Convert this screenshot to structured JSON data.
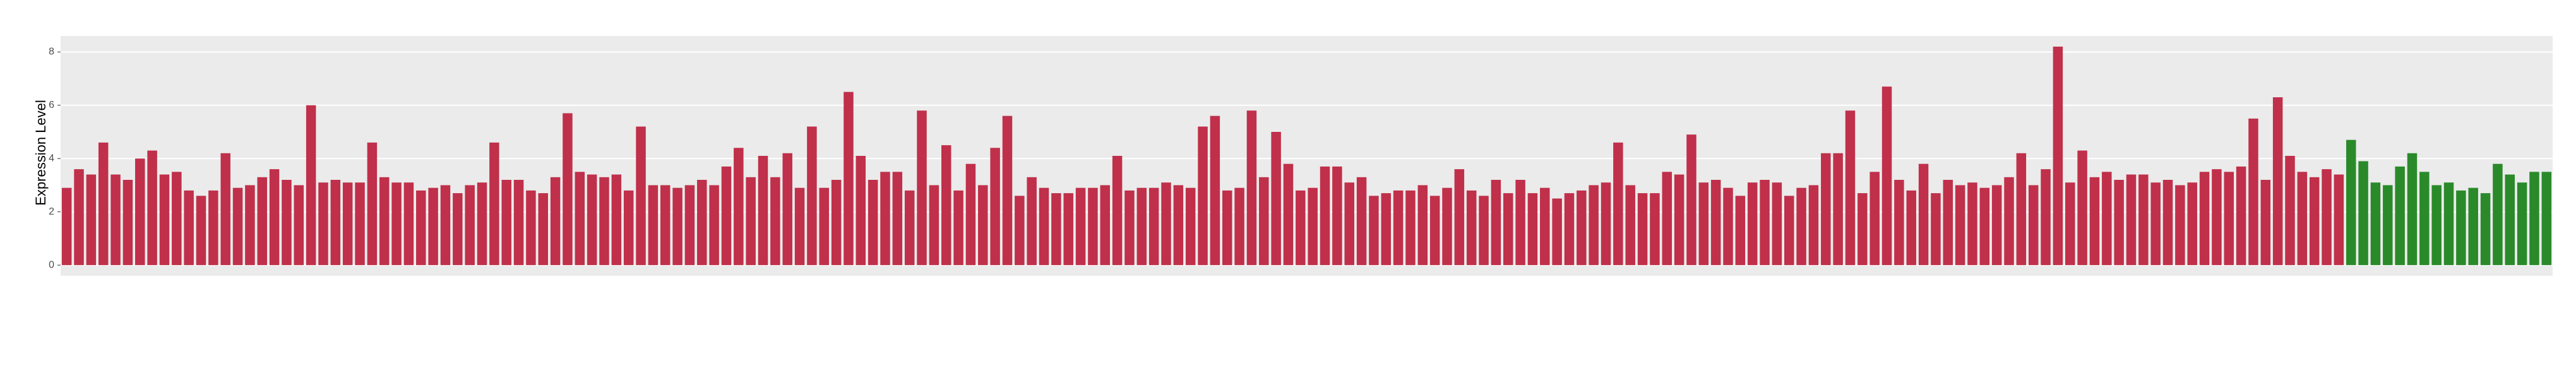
{
  "chart_data": {
    "type": "bar",
    "y_label": "Expression Level",
    "values": [
      2.9,
      3.6,
      3.4,
      4.6,
      3.4,
      3.2,
      4.0,
      4.3,
      3.4,
      3.5,
      2.8,
      2.6,
      2.8,
      4.2,
      2.9,
      3.0,
      3.3,
      3.6,
      3.2,
      3.0,
      6.0,
      3.1,
      3.2,
      3.1,
      3.1,
      4.6,
      3.3,
      3.1,
      3.1,
      2.8,
      2.9,
      3.0,
      2.7,
      3.0,
      3.1,
      4.6,
      3.2,
      3.2,
      2.8,
      2.7,
      3.3,
      5.7,
      3.5,
      3.4,
      3.3,
      3.4,
      2.8,
      5.2,
      3.0,
      3.0,
      2.9,
      3.0,
      3.2,
      3.0,
      3.7,
      4.4,
      3.3,
      4.1,
      3.3,
      4.2,
      2.9,
      5.2,
      2.9,
      3.2,
      6.5,
      4.1,
      3.2,
      3.5,
      3.5,
      2.8,
      5.8,
      3.0,
      4.5,
      2.8,
      3.8,
      3.0,
      4.4,
      5.6,
      2.6,
      3.3,
      2.9,
      2.7,
      2.7,
      2.9,
      2.9,
      3.0,
      4.1,
      2.8,
      2.9,
      2.9,
      3.1,
      3.0,
      2.9,
      5.2,
      5.6,
      2.8,
      2.9,
      5.8,
      3.3,
      5.0,
      3.8,
      2.8,
      2.9,
      3.7,
      3.7,
      3.1,
      3.3,
      2.6,
      2.7,
      2.8,
      2.8,
      3.0,
      2.6,
      2.9,
      3.6,
      2.8,
      2.6,
      3.2,
      2.7,
      3.2,
      2.7,
      2.9,
      2.5,
      2.7,
      2.8,
      3.0,
      3.1,
      4.6,
      3.0,
      2.7,
      2.7,
      3.5,
      3.4,
      4.9,
      3.1,
      3.2,
      2.9,
      2.6,
      3.1,
      3.2,
      3.1,
      2.6,
      2.9,
      3.0,
      4.2,
      4.2,
      5.8,
      2.7,
      3.5,
      6.7,
      3.2,
      2.8,
      3.8,
      2.7,
      3.2,
      3.0,
      3.1,
      2.9,
      3.0,
      3.3,
      4.2,
      3.0,
      3.6,
      8.2,
      3.1,
      4.3,
      3.3,
      3.5,
      3.2,
      3.4,
      3.4,
      3.1,
      3.2,
      3.0,
      3.1,
      3.5,
      3.6,
      3.5,
      3.7,
      5.5,
      3.2,
      6.3,
      4.1,
      3.5,
      3.3,
      3.6,
      3.4,
      4.7,
      3.9,
      3.1,
      3.0,
      3.7,
      4.2,
      3.5,
      3.0,
      3.1,
      2.8,
      2.9,
      2.7,
      3.8,
      3.4,
      3.1,
      3.5,
      3.5
    ],
    "colors": [
      "#c0304a",
      "#c0304a",
      "#c0304a",
      "#c0304a",
      "#c0304a",
      "#c0304a",
      "#c0304a",
      "#c0304a",
      "#c0304a",
      "#c0304a",
      "#c0304a",
      "#c0304a",
      "#c0304a",
      "#c0304a",
      "#c0304a",
      "#c0304a",
      "#c0304a",
      "#c0304a",
      "#c0304a",
      "#c0304a",
      "#c0304a",
      "#c0304a",
      "#c0304a",
      "#c0304a",
      "#c0304a",
      "#c0304a",
      "#c0304a",
      "#c0304a",
      "#c0304a",
      "#c0304a",
      "#c0304a",
      "#c0304a",
      "#c0304a",
      "#c0304a",
      "#c0304a",
      "#c0304a",
      "#c0304a",
      "#c0304a",
      "#c0304a",
      "#c0304a",
      "#c0304a",
      "#c0304a",
      "#c0304a",
      "#c0304a",
      "#c0304a",
      "#c0304a",
      "#c0304a",
      "#c0304a",
      "#c0304a",
      "#c0304a",
      "#c0304a",
      "#c0304a",
      "#c0304a",
      "#c0304a",
      "#c0304a",
      "#c0304a",
      "#c0304a",
      "#c0304a",
      "#c0304a",
      "#c0304a",
      "#c0304a",
      "#c0304a",
      "#c0304a",
      "#c0304a",
      "#c0304a",
      "#c0304a",
      "#c0304a",
      "#c0304a",
      "#c0304a",
      "#c0304a",
      "#c0304a",
      "#c0304a",
      "#c0304a",
      "#c0304a",
      "#c0304a",
      "#c0304a",
      "#c0304a",
      "#c0304a",
      "#c0304a",
      "#c0304a",
      "#c0304a",
      "#c0304a",
      "#c0304a",
      "#c0304a",
      "#c0304a",
      "#c0304a",
      "#c0304a",
      "#c0304a",
      "#c0304a",
      "#c0304a",
      "#c0304a",
      "#c0304a",
      "#c0304a",
      "#c0304a",
      "#c0304a",
      "#c0304a",
      "#c0304a",
      "#c0304a",
      "#c0304a",
      "#c0304a",
      "#c0304a",
      "#c0304a",
      "#c0304a",
      "#c0304a",
      "#c0304a",
      "#c0304a",
      "#c0304a",
      "#c0304a",
      "#c0304a",
      "#c0304a",
      "#c0304a",
      "#c0304a",
      "#c0304a",
      "#c0304a",
      "#c0304a",
      "#c0304a",
      "#c0304a",
      "#c0304a",
      "#c0304a",
      "#c0304a",
      "#c0304a",
      "#c0304a",
      "#c0304a",
      "#c0304a",
      "#c0304a",
      "#c0304a",
      "#c0304a",
      "#c0304a",
      "#c0304a",
      "#c0304a",
      "#c0304a",
      "#c0304a",
      "#c0304a",
      "#c0304a",
      "#c0304a",
      "#c0304a",
      "#c0304a",
      "#c0304a",
      "#c0304a",
      "#c0304a",
      "#c0304a",
      "#c0304a",
      "#c0304a",
      "#c0304a",
      "#c0304a",
      "#c0304a",
      "#c0304a",
      "#c0304a",
      "#c0304a",
      "#c0304a",
      "#c0304a",
      "#c0304a",
      "#c0304a",
      "#c0304a",
      "#c0304a",
      "#c0304a",
      "#c0304a",
      "#c0304a",
      "#c0304a",
      "#c0304a",
      "#c0304a",
      "#c0304a",
      "#c0304a",
      "#c0304a",
      "#c0304a",
      "#c0304a",
      "#c0304a",
      "#c0304a",
      "#c0304a",
      "#c0304a",
      "#c0304a",
      "#c0304a",
      "#c0304a",
      "#c0304a",
      "#c0304a",
      "#c0304a",
      "#c0304a",
      "#c0304a",
      "#c0304a",
      "#c0304a",
      "#c0304a",
      "#c0304a",
      "#c0304a",
      "#c0304a",
      "#c0304a",
      "#c0304a",
      "#c0304a",
      "#2a8a2a",
      "#2a8a2a",
      "#2a8a2a",
      "#2a8a2a",
      "#2a8a2a",
      "#2a8a2a",
      "#2a8a2a",
      "#2a8a2a",
      "#2a8a2a",
      "#2a8a2a",
      "#2a8a2a",
      "#2a8a2a",
      "#2a8a2a",
      "#2a8a2a",
      "#2a8a2a",
      "#2a8a2a",
      "#2a8a2a",
      "#2a8a2a",
      "#2a8a2a",
      "#2a8a2a",
      "#2a8a2a"
    ],
    "ylim": [
      -0.4,
      8.6
    ],
    "yticks": [
      0,
      2,
      4,
      6,
      8
    ],
    "grid": true
  }
}
